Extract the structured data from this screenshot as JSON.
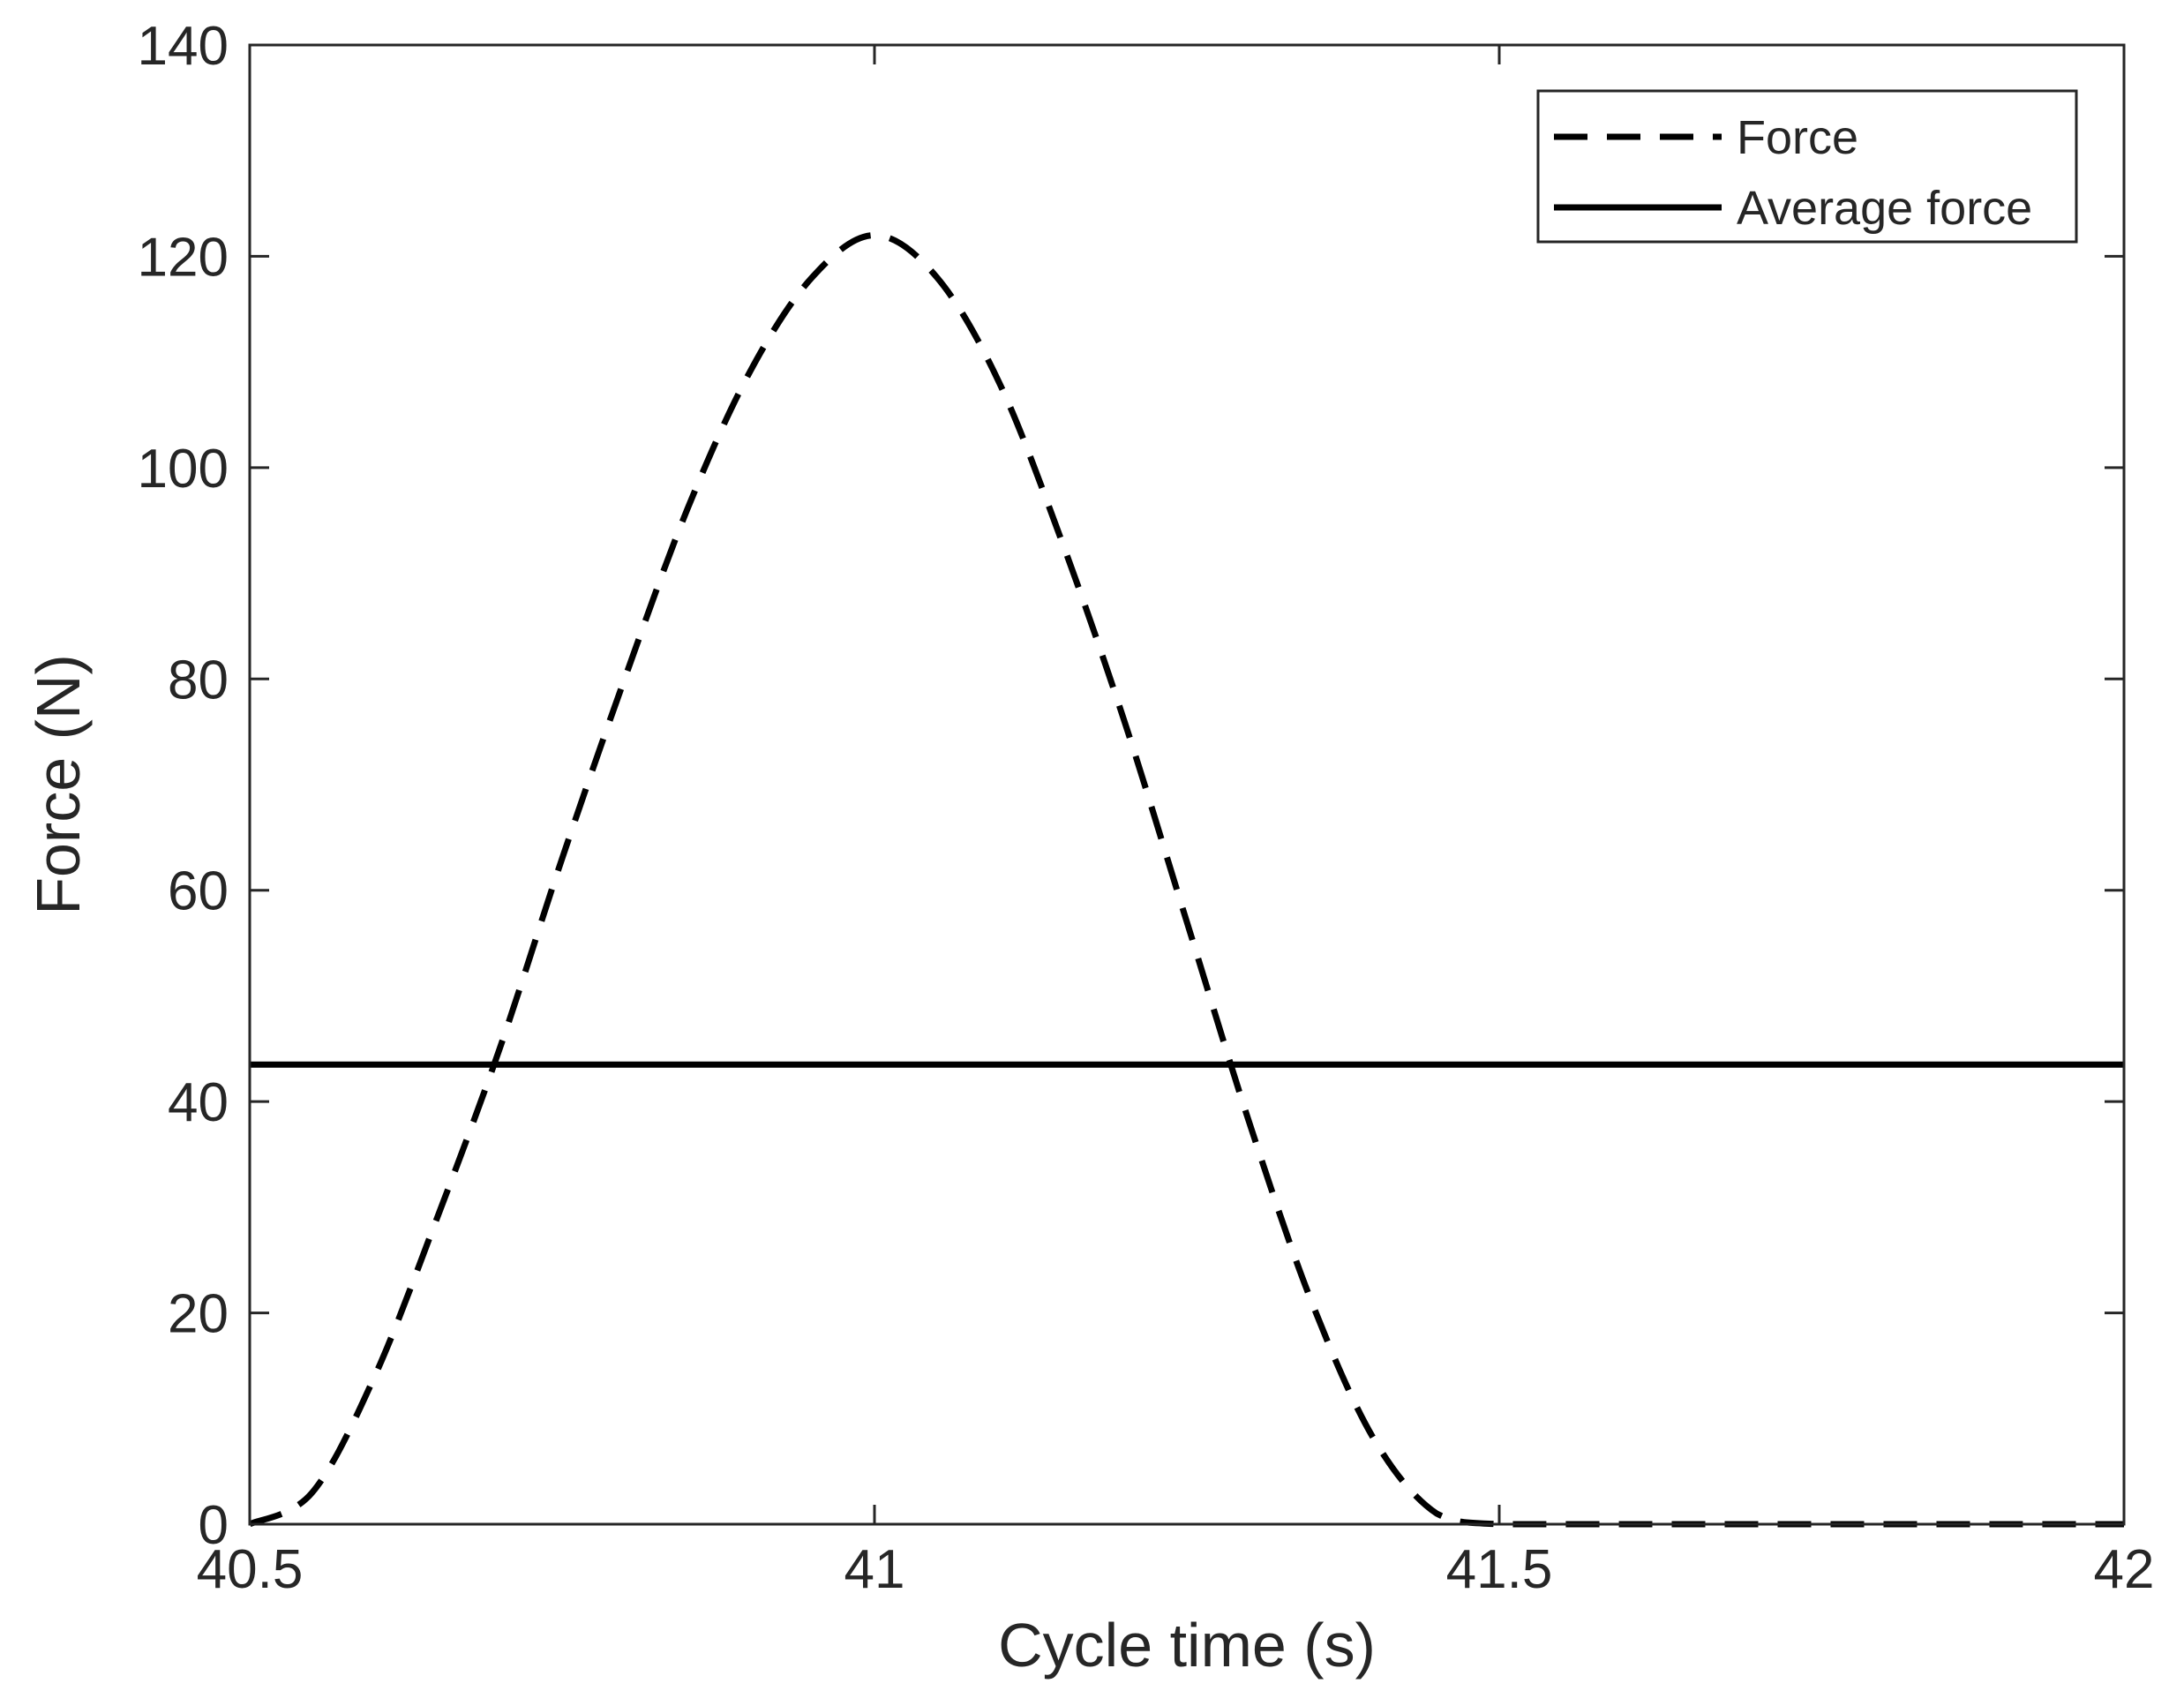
{
  "chart_data": {
    "type": "line",
    "title": "",
    "xlabel": "Cycle time (s)",
    "ylabel": "Force (N)",
    "xlim": [
      40.5,
      42
    ],
    "ylim": [
      0,
      140
    ],
    "xticks": [
      40.5,
      41,
      41.5,
      42
    ],
    "xtick_labels": [
      "40.5",
      "41",
      "41.5",
      "42"
    ],
    "yticks": [
      0,
      20,
      40,
      60,
      80,
      100,
      120,
      140
    ],
    "ytick_labels": [
      "0",
      "20",
      "40",
      "60",
      "80",
      "100",
      "120",
      "140"
    ],
    "grid": false,
    "legend_position": "top-right",
    "series": [
      {
        "name": "Force",
        "style": "dashed",
        "color": "#000000",
        "x": [
          40.5,
          40.55,
          40.6,
          40.65,
          40.7,
          40.75,
          40.8,
          40.85,
          40.9,
          40.95,
          41.0,
          41.05,
          41.1,
          41.15,
          41.2,
          41.25,
          41.3,
          41.35,
          41.4,
          41.45,
          41.5,
          41.6,
          41.7,
          41.8,
          41.9,
          42.0
        ],
        "values": [
          0,
          3,
          14,
          29,
          45,
          63,
          80,
          96,
          109,
          118,
          122,
          118,
          108,
          93,
          76,
          57,
          38,
          21,
          8,
          1,
          0,
          0,
          0,
          0,
          0,
          0
        ]
      },
      {
        "name": "Average force",
        "style": "solid",
        "color": "#000000",
        "x": [
          40.5,
          42.0
        ],
        "values": [
          43.5,
          43.5
        ]
      }
    ]
  }
}
